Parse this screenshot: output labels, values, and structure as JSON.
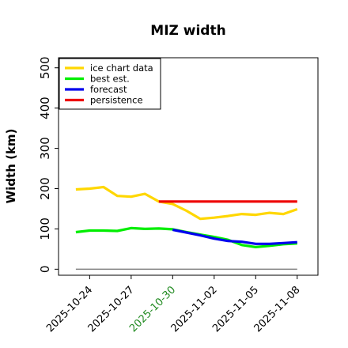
{
  "chart_data": {
    "type": "line",
    "title": "MIZ width",
    "xlabel": "",
    "ylabel": "Width (km)",
    "ylim": [
      -15,
      525
    ],
    "yticks": [
      0,
      100,
      200,
      300,
      400,
      500
    ],
    "xlim": [
      "2025-10-21T18:00",
      "2025-11-09T12:00"
    ],
    "xticks": [
      {
        "label": "2025-10-24",
        "date": "2025-10-24",
        "color": "#000000"
      },
      {
        "label": "2025-10-27",
        "date": "2025-10-27",
        "color": "#000000"
      },
      {
        "label": "2025-10-30",
        "date": "2025-10-30",
        "color": "#228B22"
      },
      {
        "label": "2025-11-02",
        "date": "2025-11-02",
        "color": "#000000"
      },
      {
        "label": "2025-11-05",
        "date": "2025-11-05",
        "color": "#000000"
      },
      {
        "label": "2025-11-08",
        "date": "2025-11-08",
        "color": "#000000"
      }
    ],
    "grid": false,
    "legend_position": "top-left",
    "series": [
      {
        "name": "ice chart data",
        "color": "#FFD700",
        "points": [
          {
            "x": "2025-10-23",
            "y": 198
          },
          {
            "x": "2025-10-24",
            "y": 200
          },
          {
            "x": "2025-10-25",
            "y": 204
          },
          {
            "x": "2025-10-26",
            "y": 182
          },
          {
            "x": "2025-10-27",
            "y": 180
          },
          {
            "x": "2025-10-28",
            "y": 187
          },
          {
            "x": "2025-10-29",
            "y": 168
          },
          {
            "x": "2025-10-30",
            "y": 162
          },
          {
            "x": "2025-10-31",
            "y": 145
          },
          {
            "x": "2025-11-01",
            "y": 125
          },
          {
            "x": "2025-11-02",
            "y": 128
          },
          {
            "x": "2025-11-03",
            "y": 132
          },
          {
            "x": "2025-11-04",
            "y": 137
          },
          {
            "x": "2025-11-05",
            "y": 135
          },
          {
            "x": "2025-11-06",
            "y": 140
          },
          {
            "x": "2025-11-07",
            "y": 137
          },
          {
            "x": "2025-11-08",
            "y": 149
          }
        ]
      },
      {
        "name": "best est.",
        "color": "#00EE00",
        "points": [
          {
            "x": "2025-10-23",
            "y": 92
          },
          {
            "x": "2025-10-24",
            "y": 96
          },
          {
            "x": "2025-10-25",
            "y": 96
          },
          {
            "x": "2025-10-26",
            "y": 95
          },
          {
            "x": "2025-10-27",
            "y": 102
          },
          {
            "x": "2025-10-28",
            "y": 100
          },
          {
            "x": "2025-10-29",
            "y": 101
          },
          {
            "x": "2025-10-30",
            "y": 99
          },
          {
            "x": "2025-10-31",
            "y": 92
          },
          {
            "x": "2025-11-01",
            "y": 86
          },
          {
            "x": "2025-11-02",
            "y": 80
          },
          {
            "x": "2025-11-03",
            "y": 73
          },
          {
            "x": "2025-11-04",
            "y": 60
          },
          {
            "x": "2025-11-05",
            "y": 55
          },
          {
            "x": "2025-11-06",
            "y": 58
          },
          {
            "x": "2025-11-07",
            "y": 62
          },
          {
            "x": "2025-11-08",
            "y": 64
          }
        ]
      },
      {
        "name": "forecast",
        "color": "#0000EE",
        "points": [
          {
            "x": "2025-10-30",
            "y": 98
          },
          {
            "x": "2025-10-31",
            "y": 91
          },
          {
            "x": "2025-11-01",
            "y": 84
          },
          {
            "x": "2025-11-02",
            "y": 76
          },
          {
            "x": "2025-11-03",
            "y": 70
          },
          {
            "x": "2025-11-04",
            "y": 68
          },
          {
            "x": "2025-11-05",
            "y": 63
          },
          {
            "x": "2025-11-06",
            "y": 63
          },
          {
            "x": "2025-11-07",
            "y": 65
          },
          {
            "x": "2025-11-08",
            "y": 67
          }
        ]
      },
      {
        "name": "persistence",
        "color": "#EE0000",
        "points": [
          {
            "x": "2025-10-29",
            "y": 168
          },
          {
            "x": "2025-11-08",
            "y": 168
          }
        ]
      },
      {
        "name": "",
        "color": "#808080",
        "points": [
          {
            "x": "2025-10-23",
            "y": 0
          },
          {
            "x": "2025-11-08",
            "y": 0
          }
        ]
      }
    ]
  }
}
